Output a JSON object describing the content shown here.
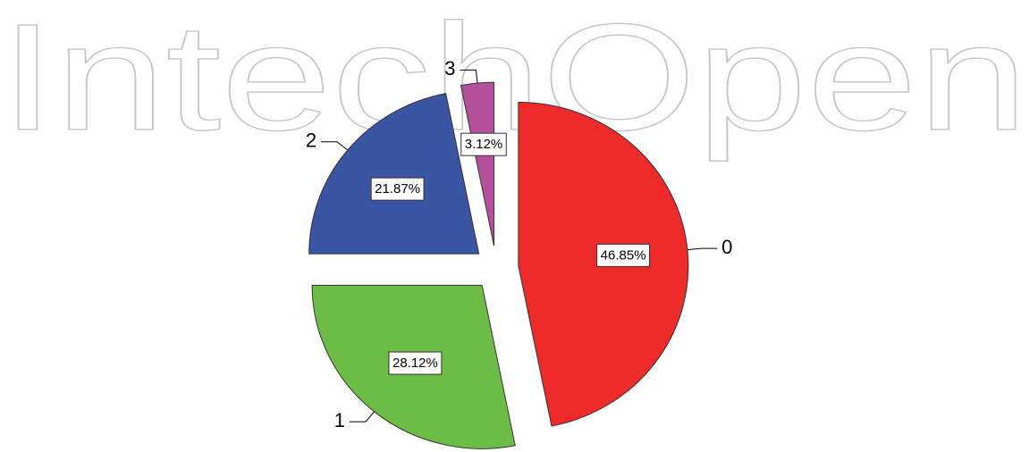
{
  "watermark": "IntechOpen",
  "chart_data": {
    "type": "pie",
    "categories": [
      "0",
      "1",
      "2",
      "3"
    ],
    "values": [
      46.85,
      28.12,
      21.87,
      3.12
    ],
    "value_labels": [
      "46.85%",
      "28.12%",
      "21.87%",
      "3.12%"
    ],
    "colors": [
      "#ee2a2a",
      "#6bbd45",
      "#3a55a4",
      "#b5509c"
    ]
  }
}
